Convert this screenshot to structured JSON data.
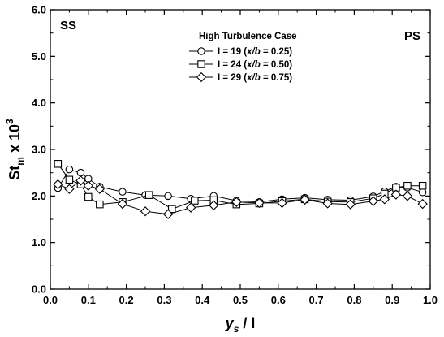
{
  "chart_data": {
    "type": "line",
    "xlabel": "y",
    "xlabel_sub": "s",
    "xlabel_tail": " / l",
    "ylabel": "St",
    "ylabel_sub": "m",
    "ylabel_mid": " x 10",
    "ylabel_sup": "3",
    "xlim": [
      0.0,
      1.0
    ],
    "ylim": [
      0.0,
      6.0
    ],
    "x_ticks": [
      "0.0",
      "0.1",
      "0.2",
      "0.3",
      "0.4",
      "0.5",
      "0.6",
      "0.7",
      "0.8",
      "0.9",
      "1.0"
    ],
    "y_ticks": [
      "0.0",
      "1.0",
      "2.0",
      "3.0",
      "4.0",
      "5.0",
      "6.0"
    ],
    "annotations": {
      "left": "SS",
      "right": "PS"
    },
    "legend_title": "High Turbulence Case",
    "legend_position": "top-center",
    "series": [
      {
        "name": "I = 19 (x/b = 0.25)",
        "legend_prefix": "I = 19 (",
        "legend_italic": "x/b",
        "legend_suffix": " =  0.25)",
        "marker": "circle",
        "points": [
          [
            0.02,
            2.17
          ],
          [
            0.05,
            2.57
          ],
          [
            0.08,
            2.5
          ],
          [
            0.1,
            2.37
          ],
          [
            0.13,
            2.2
          ],
          [
            0.19,
            2.09
          ],
          [
            0.25,
            2.02
          ],
          [
            0.31,
            2.0
          ],
          [
            0.37,
            1.94
          ],
          [
            0.43,
            2.0
          ],
          [
            0.49,
            1.9
          ],
          [
            0.55,
            1.87
          ],
          [
            0.61,
            1.93
          ],
          [
            0.67,
            1.96
          ],
          [
            0.73,
            1.92
          ],
          [
            0.79,
            1.91
          ],
          [
            0.85,
            1.99
          ],
          [
            0.88,
            2.1
          ],
          [
            0.91,
            2.2
          ],
          [
            0.94,
            2.18
          ],
          [
            0.98,
            2.08
          ]
        ]
      },
      {
        "name": "I = 24 (x/b = 0.50)",
        "legend_prefix": "I = 24 (",
        "legend_italic": "x/b",
        "legend_suffix": " =  0.50)",
        "marker": "square",
        "points": [
          [
            0.02,
            2.69
          ],
          [
            0.05,
            2.35
          ],
          [
            0.08,
            2.25
          ],
          [
            0.1,
            1.98
          ],
          [
            0.13,
            1.82
          ],
          [
            0.19,
            1.87
          ],
          [
            0.26,
            2.02
          ],
          [
            0.32,
            1.72
          ],
          [
            0.38,
            1.9
          ],
          [
            0.43,
            1.91
          ],
          [
            0.49,
            1.82
          ],
          [
            0.55,
            1.84
          ],
          [
            0.61,
            1.89
          ],
          [
            0.67,
            1.93
          ],
          [
            0.73,
            1.88
          ],
          [
            0.79,
            1.87
          ],
          [
            0.85,
            1.95
          ],
          [
            0.88,
            2.05
          ],
          [
            0.91,
            2.18
          ],
          [
            0.94,
            2.22
          ],
          [
            0.98,
            2.22
          ]
        ]
      },
      {
        "name": "I = 29 (x/b = 0.75)",
        "legend_prefix": "I = 29 (",
        "legend_italic": "x/b",
        "legend_suffix": " =  0.75)",
        "marker": "diamond",
        "points": [
          [
            0.02,
            2.25
          ],
          [
            0.05,
            2.15
          ],
          [
            0.08,
            2.33
          ],
          [
            0.1,
            2.22
          ],
          [
            0.13,
            2.15
          ],
          [
            0.19,
            1.83
          ],
          [
            0.25,
            1.67
          ],
          [
            0.31,
            1.61
          ],
          [
            0.37,
            1.75
          ],
          [
            0.43,
            1.8
          ],
          [
            0.49,
            1.87
          ],
          [
            0.55,
            1.85
          ],
          [
            0.61,
            1.85
          ],
          [
            0.67,
            1.92
          ],
          [
            0.73,
            1.84
          ],
          [
            0.79,
            1.82
          ],
          [
            0.85,
            1.89
          ],
          [
            0.88,
            1.93
          ],
          [
            0.91,
            2.03
          ],
          [
            0.94,
            2.0
          ],
          [
            0.98,
            1.83
          ]
        ]
      }
    ]
  }
}
